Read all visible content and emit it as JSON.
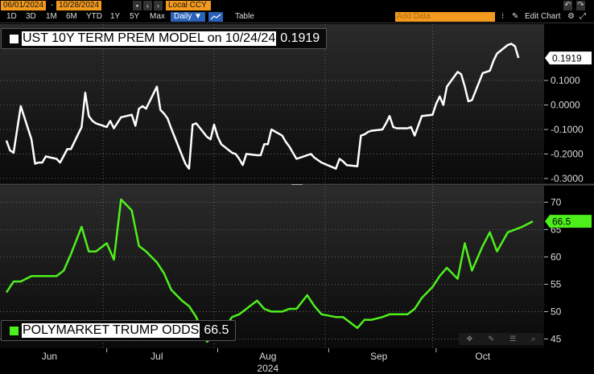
{
  "toolbar": {
    "start_date": "06/01/2024",
    "end_date": "10/28/2024",
    "currency": "Local CCY",
    "periods": [
      "1D",
      "3D",
      "1M",
      "6M",
      "YTD",
      "1Y",
      "5Y",
      "Max"
    ],
    "frequency": "Daily ▼",
    "table_label": "Table",
    "add_data_placeholder": "Add Data",
    "edit_chart_label": "Edit Chart"
  },
  "colors": {
    "top_series": "#ffffff",
    "bottom_series": "#4ef01c",
    "date_fields": "#f39a1e",
    "accent": "#2a62b8"
  },
  "chart_data": [
    {
      "type": "line",
      "x": [
        "2024-06-03",
        "2024-06-04",
        "2024-06-05",
        "2024-06-06",
        "2024-06-07",
        "2024-06-10",
        "2024-06-11",
        "2024-06-12",
        "2024-06-13",
        "2024-06-14",
        "2024-06-17",
        "2024-06-18",
        "2024-06-20",
        "2024-06-21",
        "2024-06-24",
        "2024-06-25",
        "2024-06-26",
        "2024-06-27",
        "2024-06-28",
        "2024-07-01",
        "2024-07-02",
        "2024-07-03",
        "2024-07-05",
        "2024-07-08",
        "2024-07-09",
        "2024-07-10",
        "2024-07-11",
        "2024-07-12",
        "2024-07-15",
        "2024-07-16",
        "2024-07-17",
        "2024-07-18",
        "2024-07-19",
        "2024-07-22",
        "2024-07-23",
        "2024-07-24",
        "2024-07-25",
        "2024-07-26",
        "2024-07-29",
        "2024-07-30",
        "2024-07-31",
        "2024-08-01",
        "2024-08-02",
        "2024-08-05",
        "2024-08-06",
        "2024-08-07",
        "2024-08-08",
        "2024-08-09",
        "2024-08-12",
        "2024-08-13",
        "2024-08-14",
        "2024-08-15",
        "2024-08-16",
        "2024-08-19",
        "2024-08-20",
        "2024-08-21",
        "2024-08-22",
        "2024-08-23",
        "2024-08-26",
        "2024-08-27",
        "2024-08-28",
        "2024-08-29",
        "2024-08-30",
        "2024-09-03",
        "2024-09-04",
        "2024-09-05",
        "2024-09-06",
        "2024-09-09",
        "2024-09-10",
        "2024-09-11",
        "2024-09-12",
        "2024-09-13",
        "2024-09-16",
        "2024-09-17",
        "2024-09-18",
        "2024-09-19",
        "2024-09-20",
        "2024-09-23",
        "2024-09-24",
        "2024-09-25",
        "2024-09-26",
        "2024-09-27",
        "2024-09-30",
        "2024-10-01",
        "2024-10-02",
        "2024-10-03",
        "2024-10-04",
        "2024-10-07",
        "2024-10-08",
        "2024-10-09",
        "2024-10-10",
        "2024-10-11",
        "2024-10-14",
        "2024-10-15",
        "2024-10-16",
        "2024-10-17",
        "2024-10-18",
        "2024-10-21",
        "2024-10-22",
        "2024-10-23",
        "2024-10-24"
      ],
      "series": [
        {
          "name": "UST 10Y TERM PREM MODEL on 10/24/24",
          "values": [
            -0.145,
            -0.185,
            -0.195,
            -0.1,
            -0.005,
            -0.14,
            -0.24,
            -0.235,
            -0.235,
            -0.21,
            -0.22,
            -0.235,
            -0.18,
            -0.18,
            -0.09,
            0.05,
            -0.045,
            -0.065,
            -0.075,
            -0.09,
            -0.065,
            -0.095,
            -0.05,
            -0.04,
            -0.085,
            -0.015,
            -0.005,
            -0.015,
            0.075,
            -0.02,
            -0.035,
            -0.055,
            -0.095,
            -0.205,
            -0.24,
            -0.26,
            -0.08,
            -0.075,
            -0.13,
            -0.14,
            -0.08,
            -0.13,
            -0.16,
            -0.195,
            -0.2,
            -0.22,
            -0.245,
            -0.2,
            -0.205,
            -0.205,
            -0.16,
            -0.16,
            -0.1,
            -0.125,
            -0.15,
            -0.17,
            -0.195,
            -0.22,
            -0.205,
            -0.2,
            -0.215,
            -0.225,
            -0.235,
            -0.26,
            -0.22,
            -0.23,
            -0.245,
            -0.25,
            -0.125,
            -0.12,
            -0.11,
            -0.105,
            -0.1,
            -0.075,
            -0.045,
            -0.09,
            -0.095,
            -0.095,
            -0.09,
            -0.125,
            -0.085,
            -0.045,
            -0.04,
            0.005,
            0.035,
            0.0,
            0.075,
            0.135,
            0.125,
            0.075,
            0.015,
            0.02,
            0.13,
            0.135,
            0.14,
            0.18,
            0.21,
            0.245,
            0.25,
            0.24,
            0.1919
          ]
        }
      ],
      "ylim": [
        -0.32,
        0.33
      ],
      "yticks": [
        "0.1000",
        "0.0000",
        "-0.1000",
        "-0.2000",
        "-0.3000"
      ],
      "last_value_label": "0.1919",
      "legend_value": "0.1919"
    },
    {
      "type": "line",
      "x": [
        "2024-06-03",
        "2024-06-05",
        "2024-06-07",
        "2024-06-10",
        "2024-06-12",
        "2024-06-14",
        "2024-06-17",
        "2024-06-19",
        "2024-06-21",
        "2024-06-24",
        "2024-06-26",
        "2024-06-28",
        "2024-07-01",
        "2024-07-03",
        "2024-07-05",
        "2024-07-08",
        "2024-07-10",
        "2024-07-12",
        "2024-07-15",
        "2024-07-17",
        "2024-07-19",
        "2024-07-22",
        "2024-07-24",
        "2024-07-26",
        "2024-07-29",
        "2024-07-31",
        "2024-08-02",
        "2024-08-05",
        "2024-08-07",
        "2024-08-09",
        "2024-08-12",
        "2024-08-14",
        "2024-08-16",
        "2024-08-19",
        "2024-08-21",
        "2024-08-23",
        "2024-08-26",
        "2024-08-28",
        "2024-08-30",
        "2024-09-03",
        "2024-09-05",
        "2024-09-09",
        "2024-09-11",
        "2024-09-13",
        "2024-09-16",
        "2024-09-18",
        "2024-09-20",
        "2024-09-23",
        "2024-09-25",
        "2024-09-27",
        "2024-09-30",
        "2024-10-02",
        "2024-10-04",
        "2024-10-07",
        "2024-10-09",
        "2024-10-11",
        "2024-10-14",
        "2024-10-16",
        "2024-10-18",
        "2024-10-21",
        "2024-10-23",
        "2024-10-25",
        "2024-10-28"
      ],
      "series": [
        {
          "name": "POLYMARKET TRUMP ODDS",
          "values": [
            53.5,
            55.5,
            55.5,
            56.5,
            56.5,
            56.5,
            56.5,
            57.5,
            60.5,
            65.5,
            61,
            61,
            62.5,
            59.5,
            70.5,
            68.5,
            62,
            61,
            59,
            57,
            54,
            52,
            51,
            49,
            44.5,
            45.5,
            46,
            49,
            49.5,
            50.5,
            52,
            50.5,
            50,
            50,
            50.5,
            50.5,
            53,
            51,
            49.5,
            49,
            49,
            47,
            48.5,
            48.5,
            49,
            49.5,
            49.5,
            49.5,
            50.5,
            52.5,
            54.5,
            56.5,
            58,
            56,
            62.5,
            57.5,
            62,
            64.5,
            61,
            64.5,
            65,
            65.5,
            66.5
          ]
        }
      ],
      "ylim": [
        43.3,
        72.7
      ],
      "yticks": [
        "70",
        "65",
        "60",
        "55",
        "50",
        "45"
      ],
      "last_value_label": "66.5",
      "legend_value": "66.5"
    }
  ],
  "x_axis": {
    "month_labels": [
      "Jun",
      "Jul",
      "Aug",
      "Sep",
      "Oct"
    ],
    "year_label": "2024"
  }
}
